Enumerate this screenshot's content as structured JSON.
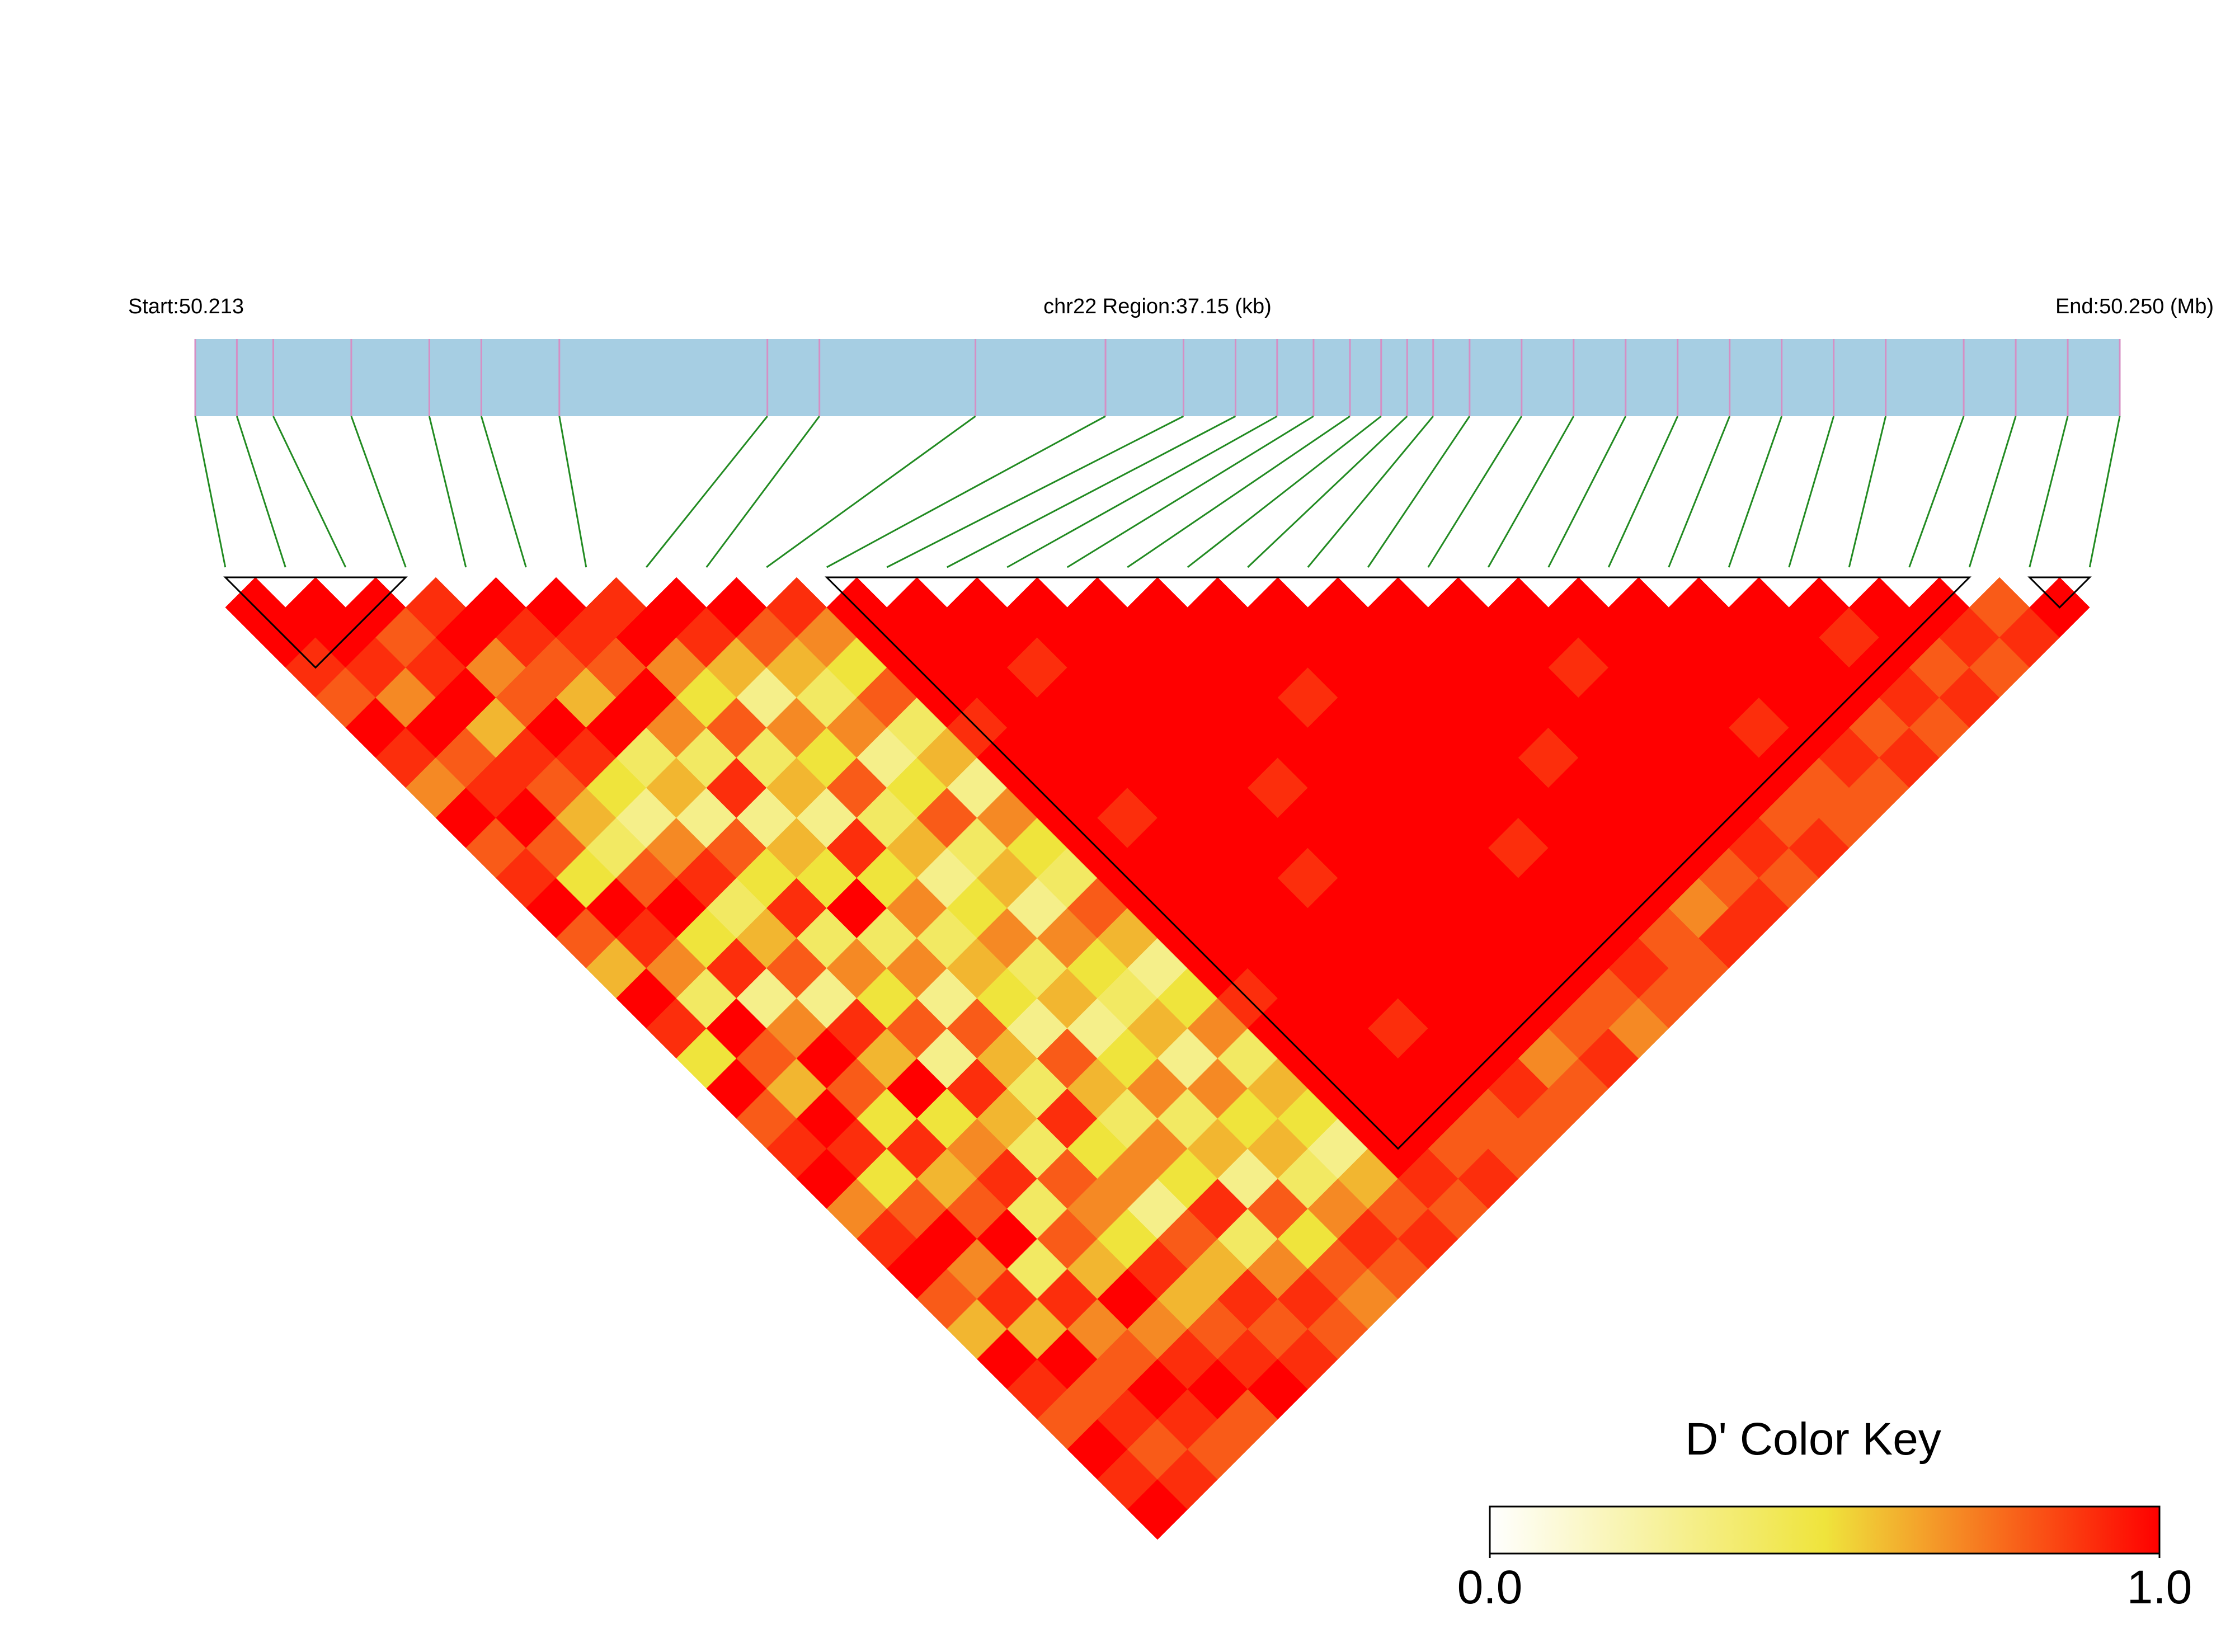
{
  "chart_data": {
    "type": "ld_heatmap",
    "start_label": "Start:50.213",
    "region_label": "chr22 Region:37.15 (kb)",
    "end_label": "End:50.250 (Mb)",
    "xlim": [
      50.213,
      50.25
    ],
    "snp_positions": [
      50.213,
      50.2138,
      50.2145,
      50.216,
      50.2175,
      50.2185,
      50.22,
      50.224,
      50.225,
      50.228,
      50.2305,
      50.232,
      50.233,
      50.2338,
      50.2345,
      50.2352,
      50.2358,
      50.2363,
      50.2368,
      50.2375,
      50.2385,
      50.2395,
      50.2405,
      50.2415,
      50.2425,
      50.2435,
      50.2445,
      50.2455,
      50.247,
      50.248,
      50.249,
      50.25
    ],
    "ld": [
      [
        1,
        1,
        0.9,
        0.8,
        1,
        0.9,
        0.7,
        1,
        0.8,
        0.9,
        1,
        0.8,
        0.6,
        1,
        0.9,
        0.5,
        1,
        0.8,
        0.9,
        1,
        0.7,
        0.9,
        1,
        0.8,
        0.6,
        1,
        0.9,
        0.8,
        1,
        0.9,
        1
      ],
      [
        1,
        1,
        0.9,
        0.7,
        1,
        0.8,
        0.9,
        1,
        0.8,
        0.5,
        1,
        0.9,
        0.7,
        0.4,
        1,
        0.8,
        0.6,
        1,
        0.9,
        0.5,
        0.8,
        1,
        0.7,
        0.9,
        0.6,
        1,
        0.8,
        0.9,
        0.8,
        0.9
      ],
      [
        1,
        0.8,
        0.9,
        1,
        0.6,
        0.9,
        0.8,
        0.6,
        0.4,
        0.8,
        1,
        0.5,
        0.9,
        0.3,
        0.7,
        1,
        0.8,
        0.5,
        0.9,
        0.6,
        0.8,
        1,
        0.4,
        0.9,
        0.7,
        0.8,
        1,
        0.9,
        0.8
      ],
      [
        0.9,
        1,
        0.7,
        0.8,
        1,
        0.9,
        0.5,
        0.3,
        0.7,
        0.9,
        0.4,
        0.6,
        0.8,
        0.3,
        0.9,
        0.6,
        1,
        0.5,
        0.7,
        0.9,
        0.4,
        0.8,
        0.6,
        1,
        0.7,
        0.9,
        1,
        0.8
      ],
      [
        1,
        0.9,
        0.8,
        0.6,
        1,
        0.4,
        0.6,
        0.3,
        0.8,
        0.5,
        0.9,
        0.4,
        0.7,
        0.5,
        0.8,
        0.3,
        0.9,
        0.6,
        0.4,
        0.8,
        0.7,
        0.5,
        0.9,
        0.6,
        0.8,
        0.9,
        1
      ],
      [
        1,
        0.9,
        0.8,
        1,
        0.7,
        0.4,
        0.9,
        0.3,
        0.6,
        0.5,
        1,
        0.4,
        0.7,
        0.3,
        0.8,
        0.6,
        0.4,
        0.9,
        0.5,
        0.7,
        0.3,
        0.8,
        0.6,
        0.9,
        0.8,
        0.9
      ],
      [
        0.9,
        1,
        0.7,
        0.5,
        0.8,
        0.4,
        0.6,
        0.3,
        0.9,
        0.5,
        0.7,
        0.4,
        0.6,
        0.5,
        0.3,
        0.8,
        0.6,
        0.4,
        0.7,
        0.5,
        0.9,
        0.4,
        0.7,
        0.9,
        0.8
      ],
      [
        1,
        0.9,
        0.6,
        0.3,
        0.7,
        0.5,
        0.8,
        0.4,
        0.6,
        0.3,
        0.5,
        0.7,
        0.4,
        0.6,
        0.3,
        0.5,
        0.7,
        0.4,
        0.6,
        0.3,
        0.8,
        0.5,
        0.8,
        0.7
      ],
      [
        1,
        0.8,
        0.6,
        0.4,
        0.7,
        0.3,
        0.5,
        0.8,
        0.4,
        0.6,
        0.3,
        0.7,
        0.5,
        0.4,
        0.6,
        0.3,
        0.7,
        0.5,
        0.6,
        0.4,
        0.7,
        0.9,
        0.8
      ],
      [
        0.9,
        0.7,
        0.5,
        0.8,
        0.4,
        0.6,
        0.3,
        0.7,
        0.5,
        0.4,
        0.8,
        0.6,
        0.3,
        0.5,
        0.7,
        0.4,
        0.6,
        0.5,
        0.3,
        0.6,
        0.8,
        0.9
      ],
      [
        1,
        1,
        1,
        1,
        0.9,
        1,
        1,
        1,
        1,
        1,
        1,
        1,
        1,
        0.9,
        1,
        1,
        1,
        1,
        1,
        0.9,
        0.8
      ],
      [
        1,
        1,
        1,
        1,
        1,
        1,
        1,
        0.9,
        1,
        1,
        1,
        1,
        1,
        1,
        1,
        1,
        1,
        1,
        0.8,
        0.9
      ],
      [
        1,
        1,
        0.9,
        1,
        1,
        1,
        1,
        1,
        1,
        1,
        1,
        1,
        1,
        1,
        0.9,
        1,
        1,
        0.8,
        0.8
      ],
      [
        1,
        1,
        1,
        1,
        1,
        1,
        1,
        1,
        1,
        0.9,
        1,
        1,
        1,
        1,
        1,
        1,
        0.9,
        0.8
      ],
      [
        1,
        1,
        1,
        1,
        1,
        1,
        0.9,
        1,
        1,
        1,
        1,
        1,
        1,
        1,
        1,
        0.7,
        0.8
      ],
      [
        1,
        1,
        1,
        1,
        1,
        1,
        1,
        1,
        1,
        1,
        1,
        1,
        1,
        1,
        0.8,
        0.9
      ],
      [
        1,
        1,
        1,
        0.9,
        1,
        1,
        1,
        1,
        1,
        1,
        1,
        1,
        1,
        0.8,
        0.7
      ],
      [
        1,
        1,
        1,
        1,
        1,
        1,
        1,
        1,
        0.9,
        1,
        1,
        1,
        0.9,
        0.8
      ],
      [
        1,
        1,
        1,
        1,
        1,
        1,
        1,
        1,
        1,
        1,
        1,
        0.8,
        0.8
      ],
      [
        1,
        1,
        1,
        1,
        1,
        0.9,
        1,
        1,
        1,
        1,
        0.7,
        0.9
      ],
      [
        1,
        1,
        1,
        1,
        1,
        1,
        1,
        1,
        1,
        0.8,
        0.9
      ],
      [
        1,
        1,
        0.9,
        1,
        1,
        1,
        1,
        1,
        0.9,
        0.8
      ],
      [
        1,
        1,
        1,
        1,
        1,
        1,
        1,
        0.8,
        0.9
      ],
      [
        1,
        1,
        1,
        1,
        0.9,
        1,
        0.8,
        0.8
      ],
      [
        1,
        1,
        1,
        1,
        1,
        0.9,
        0.8
      ],
      [
        1,
        1,
        1,
        1,
        0.8,
        0.9
      ],
      [
        1,
        0.9,
        1,
        0.9,
        0.8
      ],
      [
        1,
        1,
        0.8,
        0.9
      ],
      [
        1,
        0.9,
        0.8
      ],
      [
        0.8,
        0.9
      ],
      [
        1
      ]
    ],
    "blocks": [
      [
        0,
        3
      ],
      [
        10,
        29
      ],
      [
        30,
        31
      ]
    ],
    "bar_color": "#a6cee3",
    "snp_line_color": "#d58fc4",
    "link_color": "#228b22",
    "block_color": "#000000",
    "color_scale": [
      "#ffffff",
      "#efe43c",
      "#ff0000"
    ],
    "key_title": "D' Color Key",
    "key_lim": [
      0,
      1
    ],
    "key_ticks": [
      {
        "value": 0,
        "label": "0.0"
      },
      {
        "value": 1,
        "label": "1.0"
      }
    ]
  }
}
